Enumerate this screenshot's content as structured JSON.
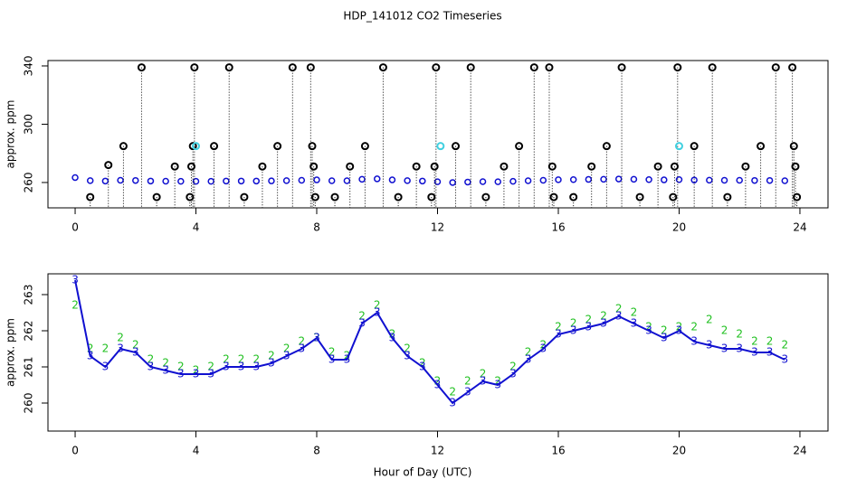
{
  "chart_data": [
    {
      "type": "scatter",
      "title": "HDP_141012  CO2 Timeseries",
      "ylabel": "approx. ppm",
      "xlim": [
        -0.9,
        24.93
      ],
      "ylim": [
        242.6,
        343.7
      ],
      "xticks": [
        0,
        4,
        8,
        12,
        16,
        20,
        24
      ],
      "yticks": [
        260,
        300,
        340
      ],
      "series": [
        {
          "color": "#1010d0",
          "marker": "dot",
          "x": [
            0,
            0.5,
            1,
            1.5,
            2,
            2.5,
            3,
            3.5,
            4,
            4.5,
            5,
            5.5,
            6,
            6.5,
            7,
            7.5,
            8,
            8.5,
            9,
            9.5,
            10,
            10.5,
            11,
            11.5,
            12,
            12.5,
            13,
            13.5,
            14,
            14.5,
            15,
            15.5,
            16,
            16.5,
            17,
            17.5,
            18,
            18.5,
            19,
            19.5,
            20,
            20.5,
            21,
            21.5,
            22,
            22.5,
            23,
            23.5
          ],
          "values": [
            263.4,
            261.3,
            261.0,
            261.5,
            261.4,
            261.0,
            260.9,
            260.8,
            260.8,
            260.8,
            261.0,
            261.0,
            261.0,
            261.1,
            261.3,
            261.5,
            261.8,
            261.2,
            261.2,
            262.2,
            262.5,
            261.8,
            261.3,
            261.0,
            260.5,
            260.0,
            260.3,
            260.6,
            260.5,
            260.8,
            261.2,
            261.5,
            261.9,
            262.0,
            262.1,
            262.2,
            262.4,
            262.2,
            262.0,
            261.8,
            262.0,
            261.7,
            261.6,
            261.5,
            261.5,
            261.4,
            261.4,
            261.2
          ]
        },
        {
          "color": "#000000",
          "marker": "circle",
          "drop": true,
          "x": [
            0.5,
            1.1,
            1.6,
            2.2,
            2.7,
            3.3,
            3.8,
            3.85,
            3.9,
            3.95,
            4.6,
            5.1,
            5.6,
            6.2,
            6.7,
            7.2,
            7.8,
            7.85,
            7.9,
            7.95,
            8.6,
            9.1,
            9.6,
            10.2,
            10.7,
            11.3,
            11.8,
            11.9,
            11.95,
            12.6,
            13.1,
            13.6,
            14.2,
            14.7,
            15.2,
            15.7,
            15.8,
            15.85,
            16.5,
            17.1,
            17.6,
            18.1,
            18.7,
            19.3,
            19.8,
            19.85,
            19.95,
            20.5,
            21.1,
            21.6,
            22.2,
            22.7,
            23.2,
            23.75,
            23.8,
            23.85,
            23.9
          ],
          "values": [
            250,
            272,
            285,
            339,
            250,
            271,
            250,
            271,
            285,
            339,
            285,
            339,
            250,
            271,
            285,
            339,
            339,
            285,
            271,
            250,
            250,
            271,
            285,
            339,
            250,
            271,
            250,
            271,
            339,
            285,
            339,
            250,
            271,
            285,
            339,
            339,
            271,
            250,
            250,
            271,
            285,
            339,
            250,
            271,
            250,
            271,
            339,
            285,
            339,
            250,
            271,
            285,
            339,
            339,
            285,
            271,
            250
          ]
        },
        {
          "color": "#40d0e0",
          "marker": "circle",
          "x": [
            4.0,
            12.1,
            20.0
          ],
          "values": [
            285,
            285,
            285
          ]
        }
      ]
    },
    {
      "type": "line",
      "ylabel": "approx. ppm",
      "xlabel": "Hour of Day (UTC)",
      "xlim": [
        -0.9,
        24.93
      ],
      "ylim": [
        259.225,
        263.575
      ],
      "xticks": [
        0,
        4,
        8,
        12,
        16,
        20,
        24
      ],
      "yticks": [
        260,
        261,
        262,
        263
      ],
      "series": [
        {
          "color": "#20c020",
          "marker": "2",
          "line": false,
          "x": [
            0,
            0.5,
            1,
            1.5,
            2,
            2.5,
            3,
            3.5,
            4,
            4.5,
            5,
            5.5,
            6,
            6.5,
            7,
            7.5,
            8,
            8.5,
            9,
            9.5,
            10,
            10.5,
            11,
            11.5,
            12,
            12.5,
            13,
            13.5,
            14,
            14.5,
            15,
            15.5,
            16,
            16.5,
            17,
            17.5,
            18,
            18.5,
            19,
            19.5,
            20,
            20.5,
            21,
            21.5,
            22,
            22.5,
            23,
            23.5
          ],
          "values": [
            262.7,
            261.5,
            261.5,
            261.8,
            261.6,
            261.2,
            261.1,
            261.0,
            260.9,
            261.0,
            261.2,
            261.2,
            261.2,
            261.3,
            261.5,
            261.7,
            261.8,
            261.4,
            261.3,
            262.4,
            262.7,
            261.9,
            261.5,
            261.1,
            260.6,
            260.3,
            260.6,
            260.8,
            260.6,
            261.0,
            261.4,
            261.6,
            262.1,
            262.2,
            262.3,
            262.4,
            262.6,
            262.5,
            262.1,
            262.0,
            262.1,
            262.1,
            262.3,
            262.0,
            261.9,
            261.7,
            261.7,
            261.6
          ]
        },
        {
          "color": "#1010d0",
          "marker": "3",
          "line": true,
          "x": [
            0,
            0.5,
            1,
            1.5,
            2,
            2.5,
            3,
            3.5,
            4,
            4.5,
            5,
            5.5,
            6,
            6.5,
            7,
            7.5,
            8,
            8.5,
            9,
            9.5,
            10,
            10.5,
            11,
            11.5,
            12,
            12.5,
            13,
            13.5,
            14,
            14.5,
            15,
            15.5,
            16,
            16.5,
            17,
            17.5,
            18,
            18.5,
            19,
            19.5,
            20,
            20.5,
            21,
            21.5,
            22,
            22.5,
            23,
            23.5
          ],
          "values": [
            263.4,
            261.3,
            261.0,
            261.5,
            261.4,
            261.0,
            260.9,
            260.8,
            260.8,
            260.8,
            261.0,
            261.0,
            261.0,
            261.1,
            261.3,
            261.5,
            261.8,
            261.2,
            261.2,
            262.2,
            262.5,
            261.8,
            261.3,
            261.0,
            260.5,
            260.0,
            260.3,
            260.6,
            260.5,
            260.8,
            261.2,
            261.5,
            261.9,
            262.0,
            262.1,
            262.2,
            262.4,
            262.2,
            262.0,
            261.8,
            262.0,
            261.7,
            261.6,
            261.5,
            261.5,
            261.4,
            261.4,
            261.2
          ]
        }
      ]
    }
  ]
}
